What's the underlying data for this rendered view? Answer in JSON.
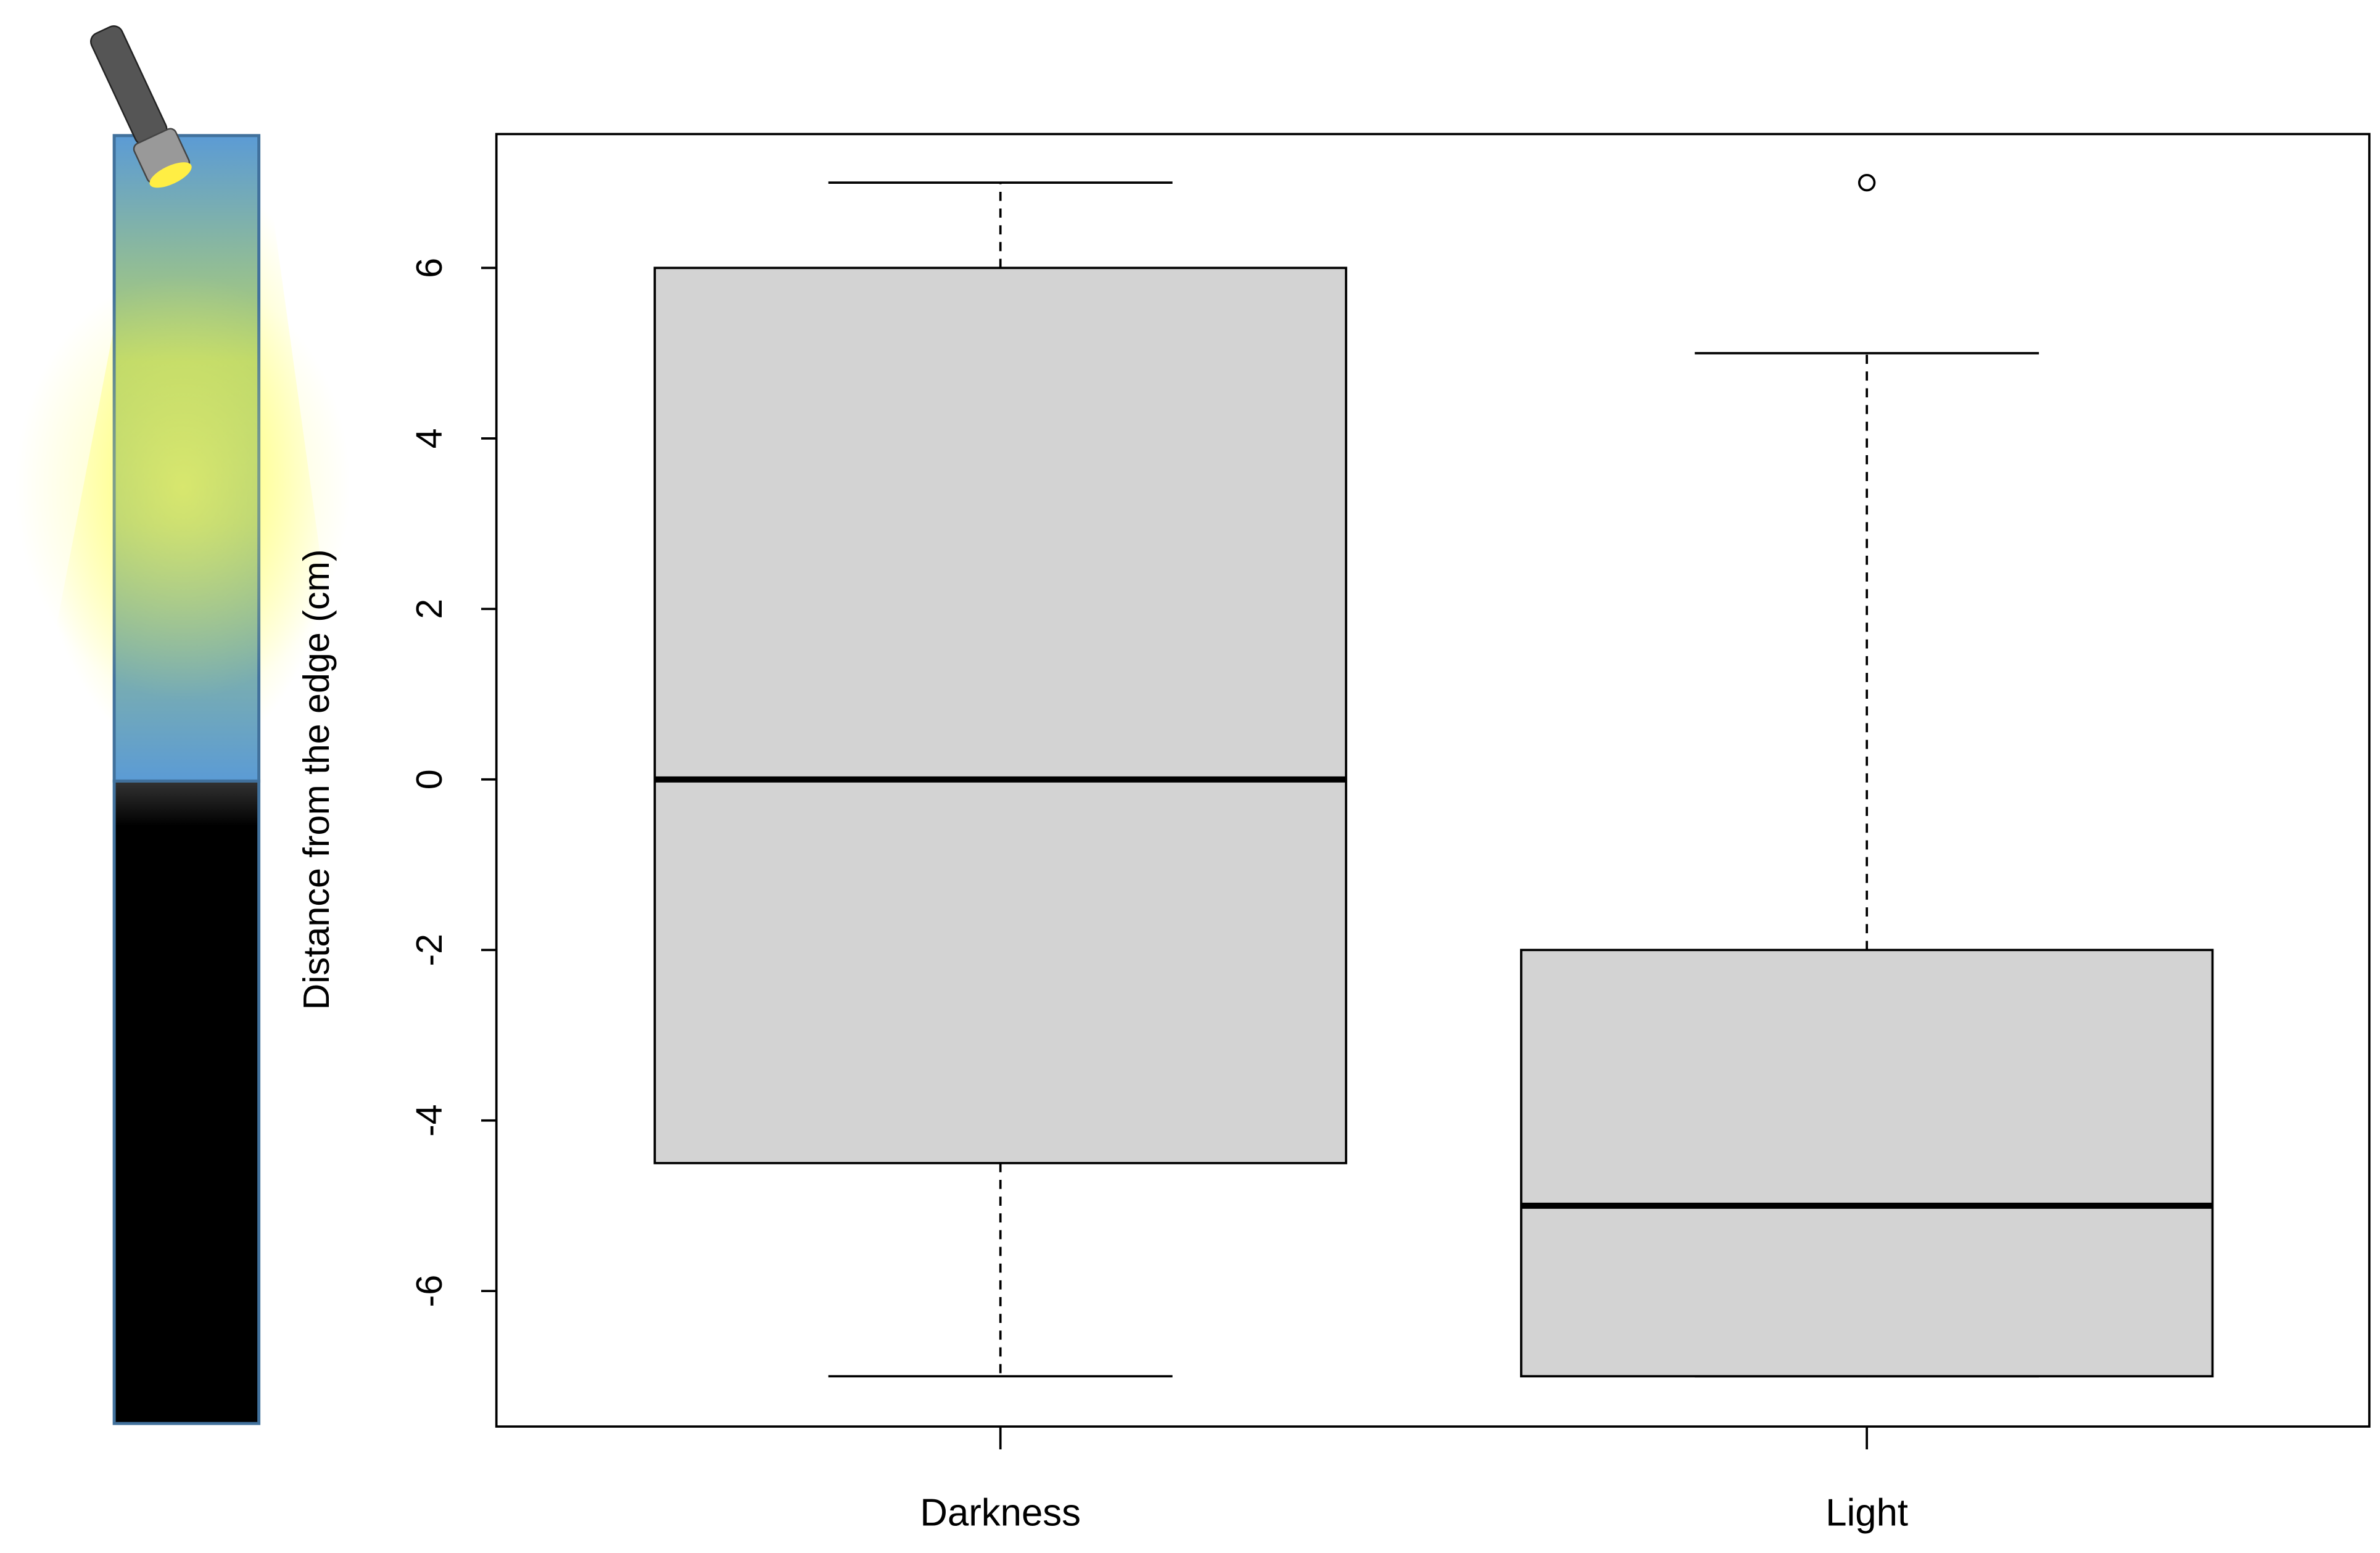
{
  "chart_data": {
    "type": "box",
    "ylabel": "Distance from the edge (cm)",
    "categories": [
      "Darkness",
      "Light"
    ],
    "color": "#d3d3d3",
    "boxes": [
      {
        "whislo": -7,
        "q1": -4.5,
        "med": 0,
        "q3": 6,
        "whishi": 7,
        "outliers": []
      },
      {
        "whislo": -7,
        "q1": -7,
        "med": -5,
        "q3": -2,
        "whishi": 5,
        "outliers": [
          7
        ]
      }
    ],
    "ylim": [
      -7.59,
      7.57
    ],
    "yticks": [
      -6,
      -4,
      -2,
      0,
      2,
      4,
      6
    ]
  }
}
